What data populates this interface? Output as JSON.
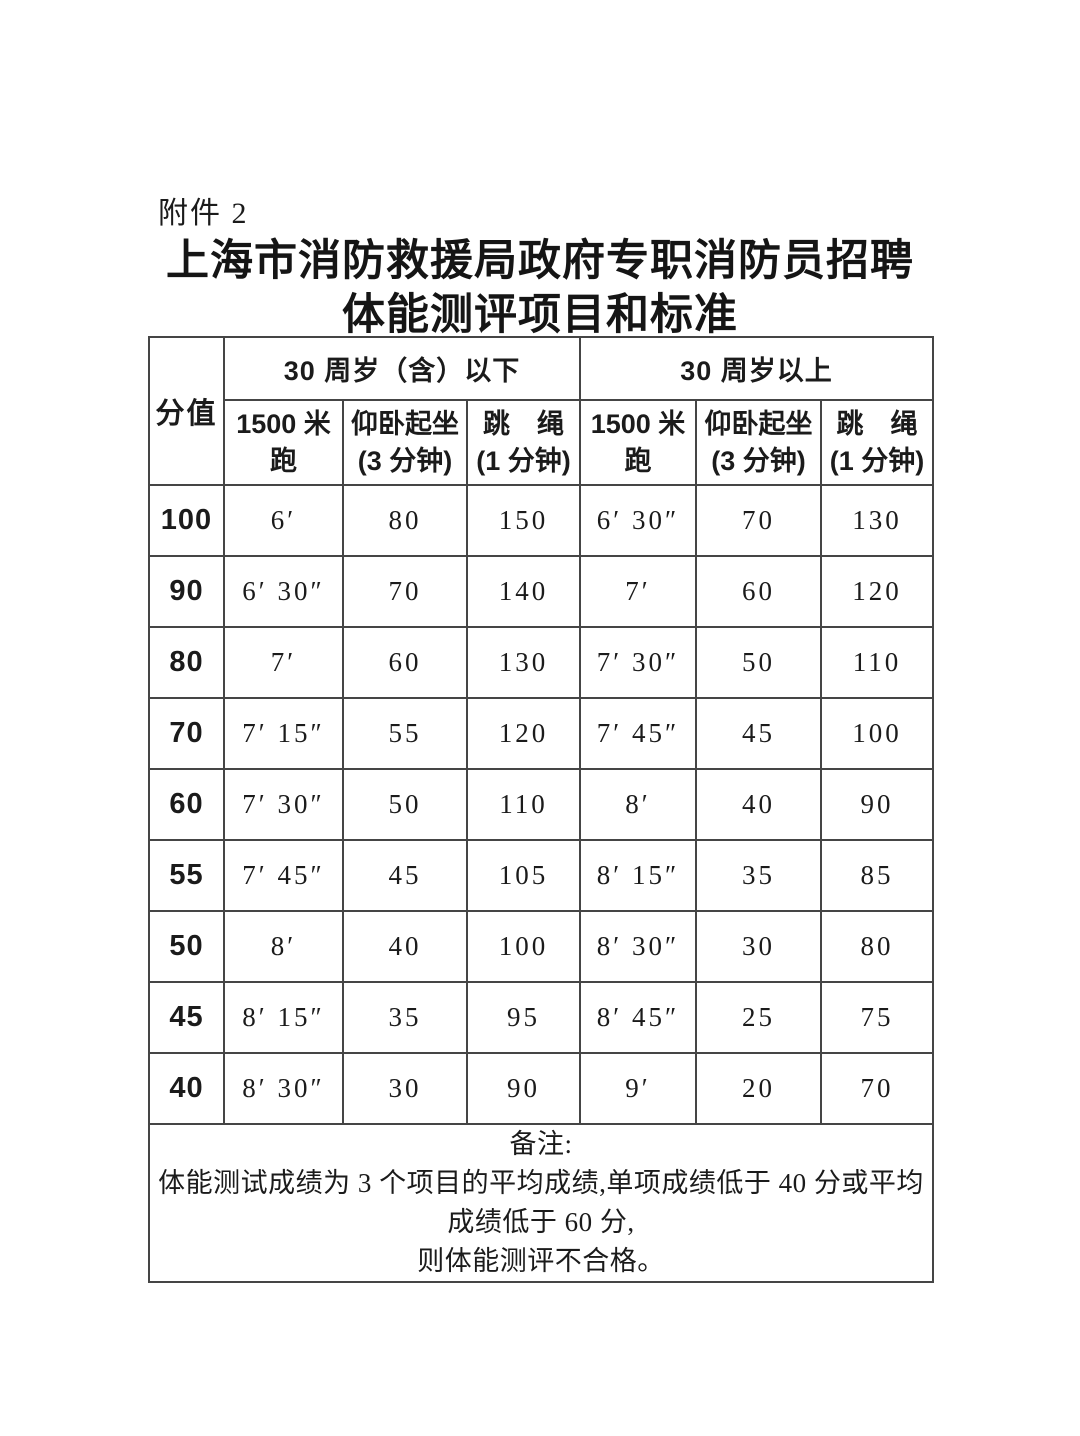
{
  "colors": {
    "text": "#1b1b1b",
    "border": "#454545",
    "background": "#ffffff"
  },
  "doc": {
    "attachment_label": "附件 2",
    "title_line1": "上海市消防救援局政府专职消防员招聘",
    "title_line2": "体能测评项目和标准"
  },
  "table": {
    "score_header": "分值",
    "group_headers": [
      "30 周岁（含）以下",
      "30 周岁以上"
    ],
    "columns": [
      {
        "label": "1500 米跑",
        "sub": ""
      },
      {
        "label": "仰卧起坐",
        "sub": "(3 分钟)"
      },
      {
        "label": "跳　绳",
        "sub": "(1 分钟)"
      },
      {
        "label": "1500 米跑",
        "sub": ""
      },
      {
        "label": "仰卧起坐",
        "sub": "(3 分钟)"
      },
      {
        "label": "跳　绳",
        "sub": "(1 分钟)"
      }
    ],
    "rows": [
      {
        "score": "100",
        "values": [
          "6′",
          "80",
          "150",
          "6′ 30″",
          "70",
          "130"
        ]
      },
      {
        "score": "90",
        "values": [
          "6′ 30″",
          "70",
          "140",
          "7′",
          "60",
          "120"
        ]
      },
      {
        "score": "80",
        "values": [
          "7′",
          "60",
          "130",
          "7′ 30″",
          "50",
          "110"
        ]
      },
      {
        "score": "70",
        "values": [
          "7′ 15″",
          "55",
          "120",
          "7′ 45″",
          "45",
          "100"
        ]
      },
      {
        "score": "60",
        "values": [
          "7′ 30″",
          "50",
          "110",
          "8′",
          "40",
          "90"
        ]
      },
      {
        "score": "55",
        "values": [
          "7′ 45″",
          "45",
          "105",
          "8′ 15″",
          "35",
          "85"
        ]
      },
      {
        "score": "50",
        "values": [
          "8′",
          "40",
          "100",
          "8′ 30″",
          "30",
          "80"
        ]
      },
      {
        "score": "45",
        "values": [
          "8′ 15″",
          "35",
          "95",
          "8′ 45″",
          "25",
          "75"
        ]
      },
      {
        "score": "40",
        "values": [
          "8′ 30″",
          "30",
          "90",
          "9′",
          "20",
          "70"
        ]
      }
    ]
  },
  "notes": {
    "label": "备注:",
    "lines": [
      "体能测试成绩为 3 个项目的平均成绩,单项成绩低于 40 分或平均成绩低于 60 分,",
      "则体能测评不合格。"
    ]
  }
}
